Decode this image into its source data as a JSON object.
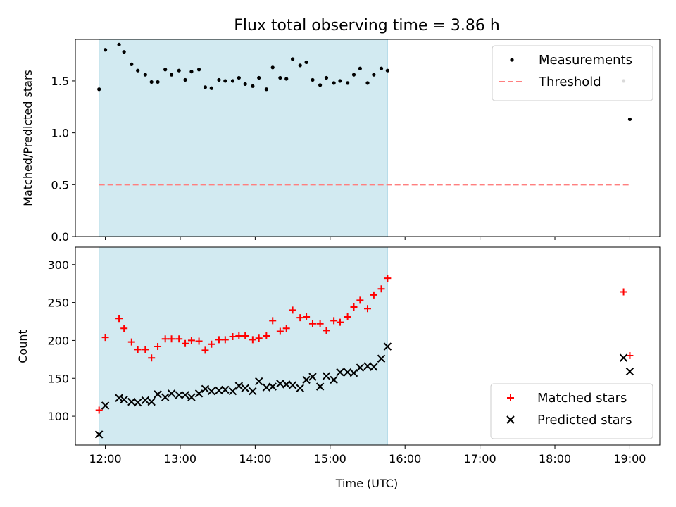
{
  "title": "Flux total observing time = 3.86 h",
  "chart_data": [
    {
      "type": "scatter",
      "title": "Flux total observing time = 3.86 h",
      "ylabel": "Matched/Predicted stars",
      "xlabel": "",
      "xlim": [
        "11:36",
        "19:24"
      ],
      "ylim": [
        0,
        1.9
      ],
      "xticks": [
        "12:00",
        "13:00",
        "14:00",
        "15:00",
        "16:00",
        "17:00",
        "18:00",
        "19:00"
      ],
      "yticks": [
        "0.0",
        "0.5",
        "1.0",
        "1.5"
      ],
      "legend_position": "top-right",
      "shaded_interval": {
        "start": "11:55",
        "end": "15:46",
        "color": "#add8e6"
      },
      "series": [
        {
          "name": "Measurements",
          "color": "#000000",
          "marker": "dot",
          "x": [
            "11:55",
            "12:00",
            "12:11",
            "12:15",
            "12:21",
            "12:26",
            "12:32",
            "12:37",
            "12:42",
            "12:48",
            "12:53",
            "12:59",
            "13:04",
            "13:09",
            "13:15",
            "13:20",
            "13:25",
            "13:31",
            "13:36",
            "13:42",
            "13:47",
            "13:52",
            "13:58",
            "14:03",
            "14:09",
            "14:14",
            "14:20",
            "14:25",
            "14:30",
            "14:36",
            "14:41",
            "14:46",
            "14:52",
            "14:57",
            "15:03",
            "15:08",
            "15:14",
            "15:19",
            "15:24",
            "15:30",
            "15:35",
            "15:41",
            "15:46",
            "18:55",
            "19:00"
          ],
          "y": [
            1.42,
            1.8,
            1.85,
            1.78,
            1.66,
            1.6,
            1.56,
            1.49,
            1.49,
            1.61,
            1.56,
            1.6,
            1.51,
            1.59,
            1.61,
            1.44,
            1.43,
            1.51,
            1.5,
            1.5,
            1.53,
            1.47,
            1.45,
            1.53,
            1.42,
            1.63,
            1.53,
            1.52,
            1.71,
            1.65,
            1.68,
            1.51,
            1.46,
            1.53,
            1.48,
            1.5,
            1.48,
            1.56,
            1.62,
            1.48,
            1.56,
            1.62,
            1.6,
            1.5,
            1.13
          ]
        },
        {
          "name": "Threshold",
          "color": "#ff7f7f",
          "style": "dashed",
          "x": [
            "11:55",
            "19:00"
          ],
          "y": [
            0.5,
            0.5
          ]
        }
      ]
    },
    {
      "type": "scatter",
      "title": "",
      "ylabel": "Count",
      "xlabel": "Time (UTC)",
      "xlim": [
        "11:36",
        "19:24"
      ],
      "ylim": [
        62,
        323
      ],
      "xticks": [
        "12:00",
        "13:00",
        "14:00",
        "15:00",
        "16:00",
        "17:00",
        "18:00",
        "19:00"
      ],
      "yticks": [
        "100",
        "150",
        "200",
        "250",
        "300"
      ],
      "legend_position": "bottom-right",
      "shaded_interval": {
        "start": "11:55",
        "end": "15:46",
        "color": "#add8e6"
      },
      "series": [
        {
          "name": "Matched stars",
          "color": "#ff0000",
          "marker": "plus",
          "x": [
            "11:55",
            "12:00",
            "12:11",
            "12:15",
            "12:21",
            "12:26",
            "12:32",
            "12:37",
            "12:42",
            "12:48",
            "12:53",
            "12:59",
            "13:04",
            "13:09",
            "13:15",
            "13:20",
            "13:25",
            "13:31",
            "13:36",
            "13:42",
            "13:47",
            "13:52",
            "13:58",
            "14:03",
            "14:09",
            "14:14",
            "14:20",
            "14:25",
            "14:30",
            "14:36",
            "14:41",
            "14:46",
            "14:52",
            "14:57",
            "15:03",
            "15:08",
            "15:14",
            "15:19",
            "15:24",
            "15:30",
            "15:35",
            "15:41",
            "15:46",
            "18:55",
            "19:00"
          ],
          "y": [
            108,
            204,
            229,
            216,
            198,
            188,
            188,
            177,
            192,
            202,
            202,
            202,
            196,
            200,
            199,
            187,
            195,
            201,
            201,
            205,
            206,
            206,
            201,
            203,
            206,
            226,
            212,
            216,
            240,
            230,
            231,
            222,
            222,
            213,
            226,
            224,
            231,
            244,
            253,
            242,
            260,
            268,
            282,
            264,
            180
          ]
        },
        {
          "name": "Predicted stars",
          "color": "#000000",
          "marker": "x",
          "x": [
            "11:55",
            "12:00",
            "12:11",
            "12:15",
            "12:21",
            "12:26",
            "12:32",
            "12:37",
            "12:42",
            "12:48",
            "12:53",
            "12:59",
            "13:04",
            "13:09",
            "13:15",
            "13:20",
            "13:25",
            "13:31",
            "13:36",
            "13:42",
            "13:47",
            "13:52",
            "13:58",
            "14:03",
            "14:09",
            "14:14",
            "14:20",
            "14:25",
            "14:30",
            "14:36",
            "14:41",
            "14:46",
            "14:52",
            "14:57",
            "15:03",
            "15:08",
            "15:14",
            "15:19",
            "15:24",
            "15:30",
            "15:35",
            "15:41",
            "15:46",
            "18:55",
            "19:00"
          ],
          "y": [
            76,
            114,
            124,
            122,
            119,
            118,
            121,
            119,
            129,
            125,
            130,
            128,
            128,
            125,
            130,
            136,
            133,
            134,
            135,
            133,
            140,
            137,
            133,
            146,
            138,
            139,
            143,
            142,
            141,
            137,
            148,
            152,
            139,
            153,
            148,
            158,
            158,
            157,
            164,
            166,
            165,
            176,
            192,
            177,
            159
          ]
        }
      ]
    }
  ]
}
